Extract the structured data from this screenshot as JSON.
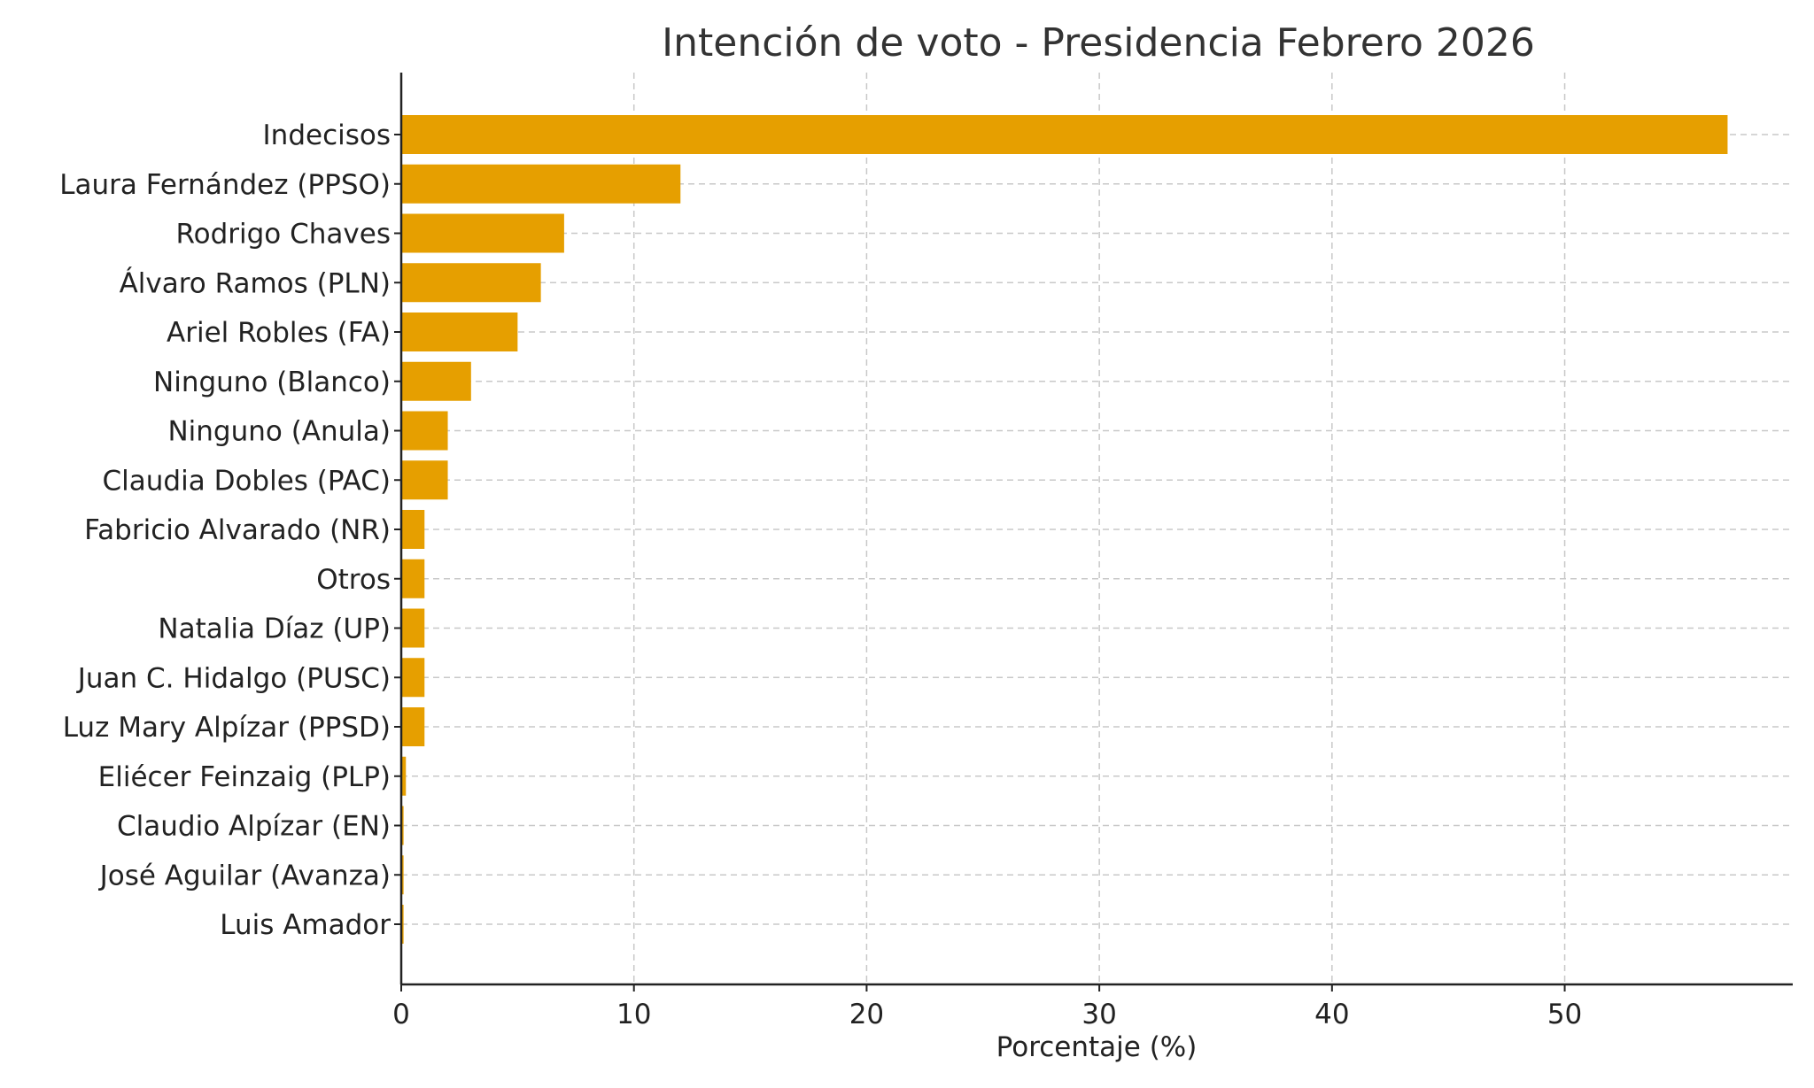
{
  "chart_data": {
    "type": "bar",
    "orientation": "horizontal",
    "title": "Intención de voto - Presidencia Febrero 2026",
    "xlabel": "Porcentaje (%)",
    "ylabel": "",
    "xlim": [
      0,
      59.8
    ],
    "xticks": [
      0,
      10,
      20,
      30,
      40,
      50
    ],
    "grid": true,
    "bar_color": "#E69F00",
    "categories": [
      "Indecisos",
      "Laura Fernández (PPSO)",
      "Rodrigo Chaves",
      "Álvaro Ramos (PLN)",
      "Ariel Robles (FA)",
      "Ninguno (Blanco)",
      "Ninguno (Anula)",
      "Claudia Dobles (PAC)",
      "Fabricio Alvarado (NR)",
      "Otros",
      "Natalia Díaz (UP)",
      "Juan C. Hidalgo (PUSC)",
      "Luz Mary Alpízar (PPSD)",
      "Eliécer Feinzaig (PLP)",
      "Claudio Alpízar (EN)",
      "José Aguilar (Avanza)",
      "Luis Amador"
    ],
    "values": [
      57,
      12,
      7,
      6,
      5,
      3,
      2,
      2,
      1,
      1,
      1,
      1,
      1,
      0.2,
      0.1,
      0.1,
      0.1
    ]
  }
}
